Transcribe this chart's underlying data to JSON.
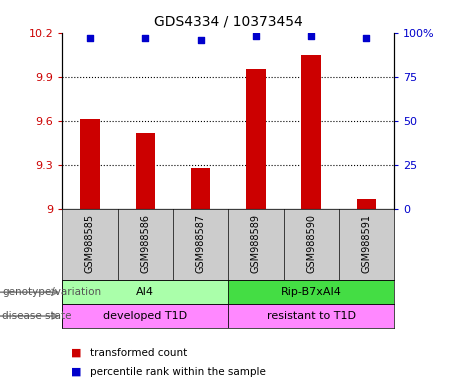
{
  "title": "GDS4334 / 10373454",
  "samples": [
    "GSM988585",
    "GSM988586",
    "GSM988587",
    "GSM988589",
    "GSM988590",
    "GSM988591"
  ],
  "bar_values": [
    9.61,
    9.52,
    9.28,
    9.95,
    10.05,
    9.07
  ],
  "percentile_values": [
    97,
    97,
    96,
    98,
    98,
    97
  ],
  "bar_color": "#cc0000",
  "percentile_color": "#0000cc",
  "ylim_left": [
    9.0,
    10.2
  ],
  "ylim_right": [
    0,
    100
  ],
  "yticks_left": [
    9.0,
    9.3,
    9.6,
    9.9,
    10.2
  ],
  "yticks_right": [
    0,
    25,
    50,
    75,
    100
  ],
  "ytick_labels_left": [
    "9",
    "9.3",
    "9.6",
    "9.9",
    "10.2"
  ],
  "ytick_labels_right": [
    "0",
    "25",
    "50",
    "75",
    "100%"
  ],
  "grid_values": [
    9.3,
    9.6,
    9.9
  ],
  "genotype_labels": [
    "AI4",
    "Rip-B7xAI4"
  ],
  "genotype_ranges": [
    [
      0,
      3
    ],
    [
      3,
      6
    ]
  ],
  "genotype_color_light": "#aaffaa",
  "genotype_color_dark": "#44dd44",
  "disease_labels": [
    "developed T1D",
    "resistant to T1D"
  ],
  "disease_color": "#ff88ff",
  "legend_red_label": "transformed count",
  "legend_blue_label": "percentile rank within the sample",
  "annotation_row1": "genotype/variation",
  "annotation_row2": "disease state",
  "sample_bg_color": "#cccccc",
  "bar_width": 0.35
}
